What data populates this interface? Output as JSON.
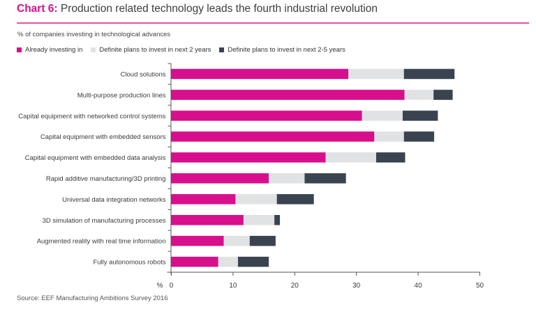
{
  "header": {
    "title_prefix": "Chart 6:",
    "title_text": " Production related technology leads the fourth industrial revolution",
    "subtitle": "% of companies investing in technological advances"
  },
  "colors": {
    "accent": "#d80f8c",
    "rule": "#e4539f",
    "already": "#d80f8c",
    "plans_2": "#e1e2e4",
    "plans_2_5": "#3a4450"
  },
  "source": "Source: EEF Manufacturing Ambitions Survey 2016",
  "chart_data": {
    "type": "bar",
    "orientation": "horizontal",
    "stacked": true,
    "title": "Production related technology leads the fourth industrial revolution",
    "ylabel": "",
    "xlabel": "%",
    "xlim": [
      0,
      50
    ],
    "xticks": [
      0,
      10,
      20,
      30,
      40,
      50
    ],
    "grid": false,
    "legend_position": "top-left",
    "categories": [
      "Cloud solutions",
      "Multi-purpose production lines",
      "Capital equipment with networked control systems",
      "Capital equipment with embedded sensors",
      "Capital equipment with embedded data analysis",
      "Rapid additive manufacturing/3D printing",
      "Universal data integration networks",
      "3D simulation of manufacturing processes",
      "Augmented reality with real time information",
      "Fully autonomous robots"
    ],
    "series": [
      {
        "name": "Already investing in",
        "color": "#d80f8c",
        "values": [
          28.7,
          37.8,
          30.9,
          32.9,
          25.0,
          15.8,
          10.4,
          11.7,
          8.5,
          7.6
        ]
      },
      {
        "name": "Definite plans to invest in next 2 years",
        "color": "#e1e2e4",
        "values": [
          9.0,
          4.7,
          6.6,
          4.8,
          8.2,
          5.8,
          6.7,
          5.0,
          4.2,
          3.2
        ]
      },
      {
        "name": "Definite plans to invest in next 2-5 years",
        "color": "#3a4450",
        "values": [
          8.2,
          3.1,
          5.7,
          4.9,
          4.7,
          6.7,
          6.0,
          0.9,
          4.2,
          5.0
        ]
      }
    ]
  }
}
